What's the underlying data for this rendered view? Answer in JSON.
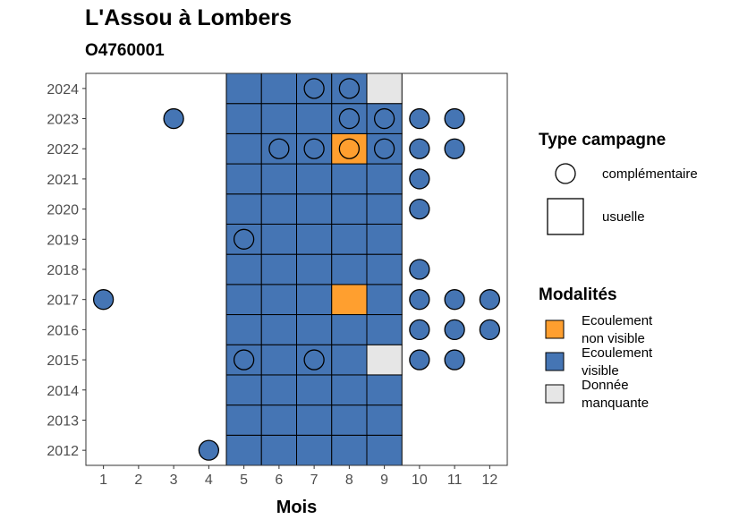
{
  "chart_data": {
    "type": "heatmap",
    "title": "L'Assou à Lombers",
    "subtitle": "O4760001",
    "xlabel": "Mois",
    "ylabel": "",
    "x_ticks": [
      1,
      2,
      3,
      4,
      5,
      6,
      7,
      8,
      9,
      10,
      11,
      12
    ],
    "y_ticks": [
      2012,
      2013,
      2014,
      2015,
      2016,
      2017,
      2018,
      2019,
      2020,
      2021,
      2022,
      2023,
      2024
    ],
    "xlim": [
      0.5,
      12.5
    ],
    "ylim": [
      2011.5,
      2024.5
    ],
    "grid": false,
    "legend_position": "right",
    "colors": {
      "Ecoulement non visible": "#FF9F2F",
      "Ecoulement visible": "#4575B4",
      "Donnée manquante": "#E6E6E6"
    },
    "legend_type": {
      "title": "Type campagne",
      "entries": [
        {
          "label": "complémentaire",
          "shape": "circle"
        },
        {
          "label": "usuelle",
          "shape": "square"
        }
      ]
    },
    "legend_modalites": {
      "title": "Modalités",
      "entries": [
        {
          "label_lines": [
            "Ecoulement",
            "non visible"
          ],
          "key": "Ecoulement non visible"
        },
        {
          "label_lines": [
            "Ecoulement",
            "visible"
          ],
          "key": "Ecoulement visible"
        },
        {
          "label_lines": [
            "Donnée",
            "manquante"
          ],
          "key": "Donnée manquante"
        }
      ]
    },
    "series": [
      {
        "name": "usuelle",
        "points": [
          {
            "x": 5,
            "y": 2012,
            "modalite": "Ecoulement visible"
          },
          {
            "x": 6,
            "y": 2012,
            "modalite": "Ecoulement visible"
          },
          {
            "x": 7,
            "y": 2012,
            "modalite": "Ecoulement visible"
          },
          {
            "x": 8,
            "y": 2012,
            "modalite": "Ecoulement visible"
          },
          {
            "x": 9,
            "y": 2012,
            "modalite": "Ecoulement visible"
          },
          {
            "x": 5,
            "y": 2013,
            "modalite": "Ecoulement visible"
          },
          {
            "x": 6,
            "y": 2013,
            "modalite": "Ecoulement visible"
          },
          {
            "x": 7,
            "y": 2013,
            "modalite": "Ecoulement visible"
          },
          {
            "x": 8,
            "y": 2013,
            "modalite": "Ecoulement visible"
          },
          {
            "x": 9,
            "y": 2013,
            "modalite": "Ecoulement visible"
          },
          {
            "x": 5,
            "y": 2014,
            "modalite": "Ecoulement visible"
          },
          {
            "x": 6,
            "y": 2014,
            "modalite": "Ecoulement visible"
          },
          {
            "x": 7,
            "y": 2014,
            "modalite": "Ecoulement visible"
          },
          {
            "x": 8,
            "y": 2014,
            "modalite": "Ecoulement visible"
          },
          {
            "x": 9,
            "y": 2014,
            "modalite": "Ecoulement visible"
          },
          {
            "x": 5,
            "y": 2015,
            "modalite": "Ecoulement visible"
          },
          {
            "x": 6,
            "y": 2015,
            "modalite": "Ecoulement visible"
          },
          {
            "x": 7,
            "y": 2015,
            "modalite": "Ecoulement visible"
          },
          {
            "x": 8,
            "y": 2015,
            "modalite": "Ecoulement visible"
          },
          {
            "x": 9,
            "y": 2015,
            "modalite": "Donnée manquante"
          },
          {
            "x": 5,
            "y": 2016,
            "modalite": "Ecoulement visible"
          },
          {
            "x": 6,
            "y": 2016,
            "modalite": "Ecoulement visible"
          },
          {
            "x": 7,
            "y": 2016,
            "modalite": "Ecoulement visible"
          },
          {
            "x": 8,
            "y": 2016,
            "modalite": "Ecoulement visible"
          },
          {
            "x": 9,
            "y": 2016,
            "modalite": "Ecoulement visible"
          },
          {
            "x": 5,
            "y": 2017,
            "modalite": "Ecoulement visible"
          },
          {
            "x": 6,
            "y": 2017,
            "modalite": "Ecoulement visible"
          },
          {
            "x": 7,
            "y": 2017,
            "modalite": "Ecoulement visible"
          },
          {
            "x": 8,
            "y": 2017,
            "modalite": "Ecoulement non visible"
          },
          {
            "x": 9,
            "y": 2017,
            "modalite": "Ecoulement visible"
          },
          {
            "x": 5,
            "y": 2018,
            "modalite": "Ecoulement visible"
          },
          {
            "x": 6,
            "y": 2018,
            "modalite": "Ecoulement visible"
          },
          {
            "x": 7,
            "y": 2018,
            "modalite": "Ecoulement visible"
          },
          {
            "x": 8,
            "y": 2018,
            "modalite": "Ecoulement visible"
          },
          {
            "x": 9,
            "y": 2018,
            "modalite": "Ecoulement visible"
          },
          {
            "x": 5,
            "y": 2019,
            "modalite": "Ecoulement visible"
          },
          {
            "x": 6,
            "y": 2019,
            "modalite": "Ecoulement visible"
          },
          {
            "x": 7,
            "y": 2019,
            "modalite": "Ecoulement visible"
          },
          {
            "x": 8,
            "y": 2019,
            "modalite": "Ecoulement visible"
          },
          {
            "x": 9,
            "y": 2019,
            "modalite": "Ecoulement visible"
          },
          {
            "x": 5,
            "y": 2020,
            "modalite": "Ecoulement visible"
          },
          {
            "x": 6,
            "y": 2020,
            "modalite": "Ecoulement visible"
          },
          {
            "x": 7,
            "y": 2020,
            "modalite": "Ecoulement visible"
          },
          {
            "x": 8,
            "y": 2020,
            "modalite": "Ecoulement visible"
          },
          {
            "x": 9,
            "y": 2020,
            "modalite": "Ecoulement visible"
          },
          {
            "x": 5,
            "y": 2021,
            "modalite": "Ecoulement visible"
          },
          {
            "x": 6,
            "y": 2021,
            "modalite": "Ecoulement visible"
          },
          {
            "x": 7,
            "y": 2021,
            "modalite": "Ecoulement visible"
          },
          {
            "x": 8,
            "y": 2021,
            "modalite": "Ecoulement visible"
          },
          {
            "x": 9,
            "y": 2021,
            "modalite": "Ecoulement visible"
          },
          {
            "x": 5,
            "y": 2022,
            "modalite": "Ecoulement visible"
          },
          {
            "x": 6,
            "y": 2022,
            "modalite": "Ecoulement visible"
          },
          {
            "x": 7,
            "y": 2022,
            "modalite": "Ecoulement visible"
          },
          {
            "x": 8,
            "y": 2022,
            "modalite": "Ecoulement non visible"
          },
          {
            "x": 9,
            "y": 2022,
            "modalite": "Ecoulement visible"
          },
          {
            "x": 5,
            "y": 2023,
            "modalite": "Ecoulement visible"
          },
          {
            "x": 6,
            "y": 2023,
            "modalite": "Ecoulement visible"
          },
          {
            "x": 7,
            "y": 2023,
            "modalite": "Ecoulement visible"
          },
          {
            "x": 8,
            "y": 2023,
            "modalite": "Ecoulement visible"
          },
          {
            "x": 9,
            "y": 2023,
            "modalite": "Ecoulement visible"
          },
          {
            "x": 5,
            "y": 2024,
            "modalite": "Ecoulement visible"
          },
          {
            "x": 6,
            "y": 2024,
            "modalite": "Ecoulement visible"
          },
          {
            "x": 7,
            "y": 2024,
            "modalite": "Ecoulement visible"
          },
          {
            "x": 8,
            "y": 2024,
            "modalite": "Ecoulement visible"
          },
          {
            "x": 9,
            "y": 2024,
            "modalite": "Donnée manquante"
          }
        ]
      },
      {
        "name": "complémentaire",
        "points": [
          {
            "x": 4,
            "y": 2012,
            "modalite": "Ecoulement visible"
          },
          {
            "x": 5,
            "y": 2015,
            "modalite": "Ecoulement visible"
          },
          {
            "x": 7,
            "y": 2015,
            "modalite": "Ecoulement visible"
          },
          {
            "x": 10,
            "y": 2015,
            "modalite": "Ecoulement visible"
          },
          {
            "x": 11,
            "y": 2015,
            "modalite": "Ecoulement visible"
          },
          {
            "x": 10,
            "y": 2016,
            "modalite": "Ecoulement visible"
          },
          {
            "x": 11,
            "y": 2016,
            "modalite": "Ecoulement visible"
          },
          {
            "x": 12,
            "y": 2016,
            "modalite": "Ecoulement visible"
          },
          {
            "x": 1,
            "y": 2017,
            "modalite": "Ecoulement visible"
          },
          {
            "x": 10,
            "y": 2017,
            "modalite": "Ecoulement visible"
          },
          {
            "x": 11,
            "y": 2017,
            "modalite": "Ecoulement visible"
          },
          {
            "x": 12,
            "y": 2017,
            "modalite": "Ecoulement visible"
          },
          {
            "x": 10,
            "y": 2018,
            "modalite": "Ecoulement visible"
          },
          {
            "x": 5,
            "y": 2019,
            "modalite": "Ecoulement visible"
          },
          {
            "x": 10,
            "y": 2020,
            "modalite": "Ecoulement visible"
          },
          {
            "x": 10,
            "y": 2021,
            "modalite": "Ecoulement visible"
          },
          {
            "x": 6,
            "y": 2022,
            "modalite": "Ecoulement visible"
          },
          {
            "x": 7,
            "y": 2022,
            "modalite": "Ecoulement visible"
          },
          {
            "x": 8,
            "y": 2022,
            "modalite": "Ecoulement non visible"
          },
          {
            "x": 9,
            "y": 2022,
            "modalite": "Ecoulement visible"
          },
          {
            "x": 10,
            "y": 2022,
            "modalite": "Ecoulement visible"
          },
          {
            "x": 11,
            "y": 2022,
            "modalite": "Ecoulement visible"
          },
          {
            "x": 3,
            "y": 2023,
            "modalite": "Ecoulement visible"
          },
          {
            "x": 8,
            "y": 2023,
            "modalite": "Ecoulement visible"
          },
          {
            "x": 9,
            "y": 2023,
            "modalite": "Ecoulement visible"
          },
          {
            "x": 10,
            "y": 2023,
            "modalite": "Ecoulement visible"
          },
          {
            "x": 11,
            "y": 2023,
            "modalite": "Ecoulement visible"
          },
          {
            "x": 7,
            "y": 2024,
            "modalite": "Ecoulement visible"
          },
          {
            "x": 8,
            "y": 2024,
            "modalite": "Ecoulement visible"
          }
        ]
      }
    ]
  }
}
